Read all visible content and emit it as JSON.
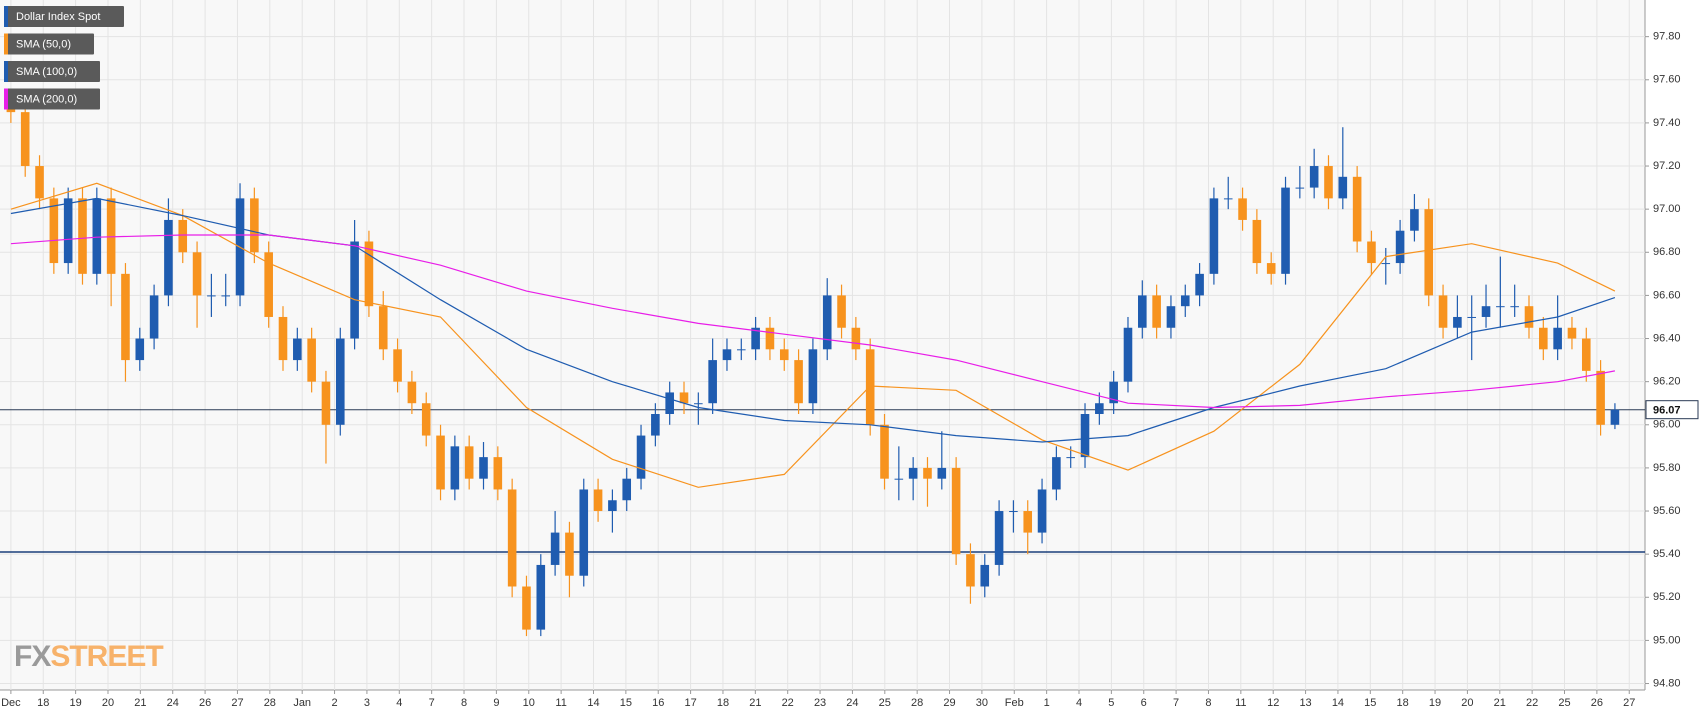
{
  "chart_data": {
    "type": "candlestick",
    "legend": [
      "Dollar Index Spot",
      "SMA (50,0)",
      "SMA (100,0)",
      "SMA (200,0)"
    ],
    "watermark": {
      "prefix": "FX",
      "suffix": "STREET"
    },
    "candles": {
      "name": "Dollar Index Spot",
      "up_color": "#1f5cb0",
      "down_color": "#f7931e",
      "open": [
        97.5,
        97.45,
        97.2,
        97.05,
        96.75,
        97.05,
        96.7,
        97.05,
        96.7,
        96.3,
        96.4,
        96.6,
        96.95,
        96.8,
        96.6,
        96.6,
        96.6,
        97.05,
        96.8,
        96.5,
        96.3,
        96.4,
        96.2,
        96.0,
        96.4,
        96.85,
        96.55,
        96.35,
        96.2,
        96.1,
        95.95,
        95.7,
        95.9,
        95.75,
        95.85,
        95.7,
        95.25,
        95.05,
        95.35,
        95.5,
        95.3,
        95.7,
        95.6,
        95.65,
        95.75,
        95.95,
        96.05,
        96.15,
        96.1,
        96.1,
        96.3,
        96.35,
        96.35,
        96.45,
        96.35,
        96.3,
        96.1,
        96.35,
        96.6,
        96.45,
        96.35,
        96.0,
        95.75,
        95.75,
        95.8,
        95.75,
        95.8,
        95.4,
        95.25,
        95.35,
        95.6,
        95.6,
        95.5,
        95.7,
        95.85,
        95.85,
        96.05,
        96.1,
        96.2,
        96.45,
        96.6,
        96.45,
        96.55,
        96.6,
        96.7,
        97.05,
        97.05,
        96.95,
        96.75,
        96.7,
        97.1,
        97.1,
        97.2,
        97.05,
        97.15,
        96.85,
        96.75,
        96.75,
        96.9,
        97.0,
        96.6,
        96.45,
        96.5,
        96.5,
        96.55,
        96.55,
        96.55,
        96.45,
        96.35,
        96.45,
        96.4,
        96.25,
        96.0
      ],
      "high": [
        97.55,
        97.5,
        97.25,
        97.1,
        97.1,
        97.1,
        97.1,
        97.1,
        96.75,
        96.45,
        96.65,
        97.05,
        97.0,
        96.85,
        96.7,
        96.7,
        97.12,
        97.1,
        96.85,
        96.55,
        96.45,
        96.45,
        96.25,
        96.45,
        96.95,
        96.9,
        96.62,
        96.4,
        96.25,
        96.15,
        96.0,
        95.95,
        95.95,
        95.92,
        95.9,
        95.75,
        95.3,
        95.4,
        95.6,
        95.55,
        95.75,
        95.75,
        95.7,
        95.8,
        96.0,
        96.1,
        96.2,
        96.2,
        96.15,
        96.4,
        96.4,
        96.4,
        96.5,
        96.5,
        96.4,
        96.35,
        96.4,
        96.68,
        96.65,
        96.5,
        96.4,
        96.05,
        95.9,
        95.85,
        95.85,
        95.97,
        95.85,
        95.45,
        95.4,
        95.65,
        95.65,
        95.65,
        95.75,
        95.9,
        95.9,
        96.1,
        96.15,
        96.25,
        96.5,
        96.67,
        96.65,
        96.6,
        96.65,
        96.75,
        97.1,
        97.15,
        97.1,
        97.0,
        96.8,
        97.15,
        97.2,
        97.28,
        97.25,
        97.38,
        97.2,
        96.9,
        96.82,
        96.95,
        97.07,
        97.05,
        96.65,
        96.6,
        96.6,
        96.65,
        96.78,
        96.65,
        96.6,
        96.5,
        96.6,
        96.5,
        96.45,
        96.3,
        96.1
      ],
      "low": [
        97.4,
        97.15,
        97.0,
        96.7,
        96.7,
        96.65,
        96.65,
        96.55,
        96.2,
        96.25,
        96.35,
        96.55,
        96.75,
        96.45,
        96.5,
        96.55,
        96.55,
        96.75,
        96.45,
        96.25,
        96.25,
        96.15,
        95.82,
        95.95,
        96.35,
        96.5,
        96.3,
        96.15,
        96.05,
        95.9,
        95.65,
        95.65,
        95.7,
        95.7,
        95.65,
        95.2,
        95.02,
        95.02,
        95.3,
        95.2,
        95.25,
        95.55,
        95.5,
        95.6,
        95.7,
        95.9,
        96.0,
        96.05,
        96.0,
        96.05,
        96.25,
        96.3,
        96.3,
        96.3,
        96.25,
        96.05,
        96.05,
        96.3,
        96.4,
        96.3,
        95.95,
        95.7,
        95.65,
        95.65,
        95.62,
        95.7,
        95.35,
        95.17,
        95.2,
        95.3,
        95.5,
        95.4,
        95.45,
        95.65,
        95.8,
        95.8,
        96.0,
        96.05,
        96.15,
        96.4,
        96.4,
        96.4,
        96.5,
        96.55,
        96.65,
        97.0,
        96.9,
        96.7,
        96.65,
        96.65,
        97.05,
        97.05,
        97.0,
        97.0,
        96.8,
        96.7,
        96.65,
        96.7,
        96.85,
        96.55,
        96.4,
        96.4,
        96.3,
        96.45,
        96.45,
        96.5,
        96.4,
        96.3,
        96.3,
        96.35,
        96.2,
        95.95,
        95.98
      ],
      "close": [
        97.45,
        97.2,
        97.05,
        96.75,
        97.05,
        96.7,
        97.05,
        96.7,
        96.3,
        96.4,
        96.6,
        96.95,
        96.8,
        96.6,
        96.6,
        96.6,
        97.05,
        96.8,
        96.5,
        96.3,
        96.4,
        96.2,
        96.0,
        96.4,
        96.85,
        96.55,
        96.35,
        96.2,
        96.1,
        95.95,
        95.7,
        95.9,
        95.75,
        95.85,
        95.7,
        95.25,
        95.05,
        95.35,
        95.5,
        95.3,
        95.7,
        95.6,
        95.65,
        95.75,
        95.95,
        96.05,
        96.15,
        96.1,
        96.1,
        96.3,
        96.35,
        96.35,
        96.45,
        96.35,
        96.3,
        96.1,
        96.35,
        96.6,
        96.45,
        96.35,
        96.0,
        95.75,
        95.75,
        95.8,
        95.75,
        95.8,
        95.4,
        95.25,
        95.35,
        95.6,
        95.6,
        95.5,
        95.7,
        95.85,
        95.85,
        96.05,
        96.1,
        96.2,
        96.45,
        96.6,
        96.45,
        96.55,
        96.6,
        96.7,
        97.05,
        97.05,
        96.95,
        96.75,
        96.7,
        97.1,
        97.1,
        97.2,
        97.05,
        97.15,
        96.85,
        96.75,
        96.75,
        96.9,
        97.0,
        96.6,
        96.45,
        96.5,
        96.5,
        96.55,
        96.55,
        96.55,
        96.45,
        96.35,
        96.45,
        96.4,
        96.25,
        96.0,
        96.07
      ]
    },
    "series": [
      {
        "name": "SMA (50,0)",
        "color": "#f7931e",
        "x": [
          0,
          6,
          12,
          18,
          24,
          30,
          36,
          42,
          48,
          54,
          60,
          66,
          72,
          78,
          84,
          90,
          96,
          102,
          108,
          112
        ],
        "values": [
          97.0,
          97.12,
          96.97,
          96.75,
          96.58,
          96.5,
          96.08,
          95.84,
          95.71,
          95.77,
          96.18,
          96.16,
          95.93,
          95.79,
          95.97,
          96.28,
          96.78,
          96.84,
          96.75,
          96.62
        ]
      },
      {
        "name": "SMA (100,0)",
        "color": "#1f5cb0",
        "x": [
          0,
          6,
          12,
          18,
          24,
          30,
          36,
          42,
          48,
          54,
          60,
          66,
          72,
          78,
          84,
          90,
          96,
          102,
          108,
          112
        ],
        "values": [
          96.98,
          97.05,
          96.97,
          96.88,
          96.83,
          96.58,
          96.35,
          96.2,
          96.08,
          96.02,
          96.0,
          95.95,
          95.92,
          95.95,
          96.08,
          96.18,
          96.26,
          96.43,
          96.5,
          96.59
        ]
      },
      {
        "name": "SMA (200,0)",
        "color": "#e81ee8",
        "x": [
          0,
          6,
          12,
          18,
          24,
          30,
          36,
          42,
          48,
          54,
          60,
          66,
          72,
          78,
          84,
          90,
          96,
          102,
          108,
          112
        ],
        "values": [
          96.84,
          96.87,
          96.88,
          96.88,
          96.83,
          96.74,
          96.62,
          96.54,
          96.47,
          96.42,
          96.37,
          96.3,
          96.2,
          96.1,
          96.08,
          96.09,
          96.13,
          96.16,
          96.2,
          96.25
        ]
      }
    ],
    "current_price": 96.07,
    "support_level": 95.41,
    "xlim": [
      -0.76,
      114.1
    ],
    "ylim": [
      94.77,
      97.97
    ],
    "xticks": [
      {
        "value": 0,
        "label": "Dec"
      },
      {
        "value": 2.26,
        "label": "18"
      },
      {
        "value": 4.52,
        "label": "19"
      },
      {
        "value": 6.78,
        "label": "20"
      },
      {
        "value": 9.04,
        "label": "21"
      },
      {
        "value": 11.3,
        "label": "24"
      },
      {
        "value": 13.56,
        "label": "26"
      },
      {
        "value": 15.82,
        "label": "27"
      },
      {
        "value": 18.08,
        "label": "28"
      },
      {
        "value": 20.34,
        "label": "Jan"
      },
      {
        "value": 22.6,
        "label": "2"
      },
      {
        "value": 24.86,
        "label": "3"
      },
      {
        "value": 27.12,
        "label": "4"
      },
      {
        "value": 29.38,
        "label": "7"
      },
      {
        "value": 31.64,
        "label": "8"
      },
      {
        "value": 33.9,
        "label": "9"
      },
      {
        "value": 36.16,
        "label": "10"
      },
      {
        "value": 38.42,
        "label": "11"
      },
      {
        "value": 40.68,
        "label": "14"
      },
      {
        "value": 42.94,
        "label": "15"
      },
      {
        "value": 45.2,
        "label": "16"
      },
      {
        "value": 47.46,
        "label": "17"
      },
      {
        "value": 49.72,
        "label": "18"
      },
      {
        "value": 51.98,
        "label": "21"
      },
      {
        "value": 54.24,
        "label": "22"
      },
      {
        "value": 56.5,
        "label": "23"
      },
      {
        "value": 58.76,
        "label": "24"
      },
      {
        "value": 61.02,
        "label": "25"
      },
      {
        "value": 63.28,
        "label": "28"
      },
      {
        "value": 65.54,
        "label": "29"
      },
      {
        "value": 67.8,
        "label": "30"
      },
      {
        "value": 70.06,
        "label": "Feb"
      },
      {
        "value": 72.32,
        "label": "1"
      },
      {
        "value": 74.58,
        "label": "4"
      },
      {
        "value": 76.84,
        "label": "5"
      },
      {
        "value": 79.1,
        "label": "6"
      },
      {
        "value": 81.36,
        "label": "7"
      },
      {
        "value": 83.62,
        "label": "8"
      },
      {
        "value": 85.88,
        "label": "11"
      },
      {
        "value": 88.14,
        "label": "12"
      },
      {
        "value": 90.4,
        "label": "13"
      },
      {
        "value": 92.66,
        "label": "14"
      },
      {
        "value": 94.92,
        "label": "15"
      },
      {
        "value": 97.18,
        "label": "18"
      },
      {
        "value": 99.44,
        "label": "19"
      },
      {
        "value": 101.7,
        "label": "20"
      },
      {
        "value": 103.96,
        "label": "21"
      },
      {
        "value": 106.22,
        "label": "22"
      },
      {
        "value": 108.48,
        "label": "25"
      },
      {
        "value": 110.74,
        "label": "26"
      },
      {
        "value": 113.0,
        "label": "27"
      }
    ],
    "yticks": [
      {
        "value": 94.8,
        "label": "94.80"
      },
      {
        "value": 95.0,
        "label": "95.00"
      },
      {
        "value": 95.2,
        "label": "95.20"
      },
      {
        "value": 95.4,
        "label": "95.40"
      },
      {
        "value": 95.6,
        "label": "95.60"
      },
      {
        "value": 95.8,
        "label": "95.80"
      },
      {
        "value": 96.0,
        "label": "96.00"
      },
      {
        "value": 96.2,
        "label": "96.20"
      },
      {
        "value": 96.4,
        "label": "96.40"
      },
      {
        "value": 96.6,
        "label": "96.60"
      },
      {
        "value": 96.8,
        "label": "96.80"
      },
      {
        "value": 97.0,
        "label": "97.00"
      },
      {
        "value": 97.2,
        "label": "97.20"
      },
      {
        "value": 97.4,
        "label": "97.40"
      },
      {
        "value": 97.6,
        "label": "97.60"
      },
      {
        "value": 97.8,
        "label": "97.80"
      }
    ],
    "grid": true
  }
}
